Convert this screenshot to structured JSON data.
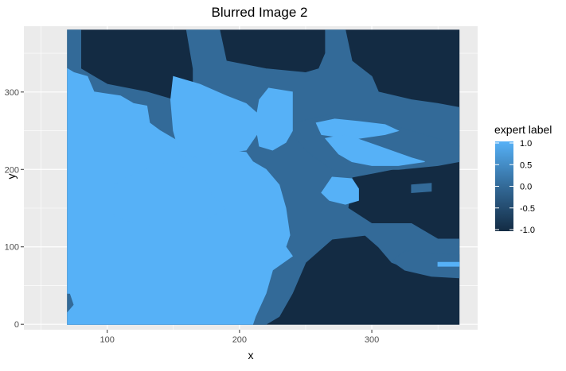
{
  "chart_data": {
    "type": "heatmap",
    "title": "Blurred Image 2",
    "xlabel": "x",
    "ylabel": "y",
    "xlim": [
      37,
      380
    ],
    "ylim": [
      -7,
      385
    ],
    "x_range": [
      70,
      366
    ],
    "y_range": [
      0,
      380
    ],
    "x_ticks": [
      100,
      200,
      300
    ],
    "y_ticks": [
      0,
      100,
      200,
      300
    ],
    "grid": true,
    "legend": {
      "title": "expert label",
      "position": "right",
      "min": -1.0,
      "max": 1.0,
      "ticks": [
        1.0,
        0.5,
        0.0,
        -0.5,
        -1.0
      ],
      "tick_labels": [
        "1.0",
        "0.5",
        "0.0",
        "-0.5",
        "-1.0"
      ]
    },
    "colors": {
      "low": "#132B43",
      "mid": "#336A98",
      "high": "#56B1F7",
      "panel": "#EBEBEB",
      "grid": "#FFFFFF"
    },
    "regions": [
      {
        "label": -1.0,
        "polygons": [
          [
            [
              70,
              380
            ],
            [
              366,
              380
            ],
            [
              366,
              0
            ],
            [
              70,
              0
            ]
          ]
        ]
      },
      {
        "label": 0.0,
        "polygons": [
          [
            [
              70,
              380
            ],
            [
              80,
              380
            ],
            [
              80,
              330
            ],
            [
              100,
              310
            ],
            [
              130,
              300
            ],
            [
              150,
              290
            ],
            [
              165,
              285
            ],
            [
              165,
              330
            ],
            [
              160,
              380
            ],
            [
              185,
              380
            ],
            [
              190,
              340
            ],
            [
              220,
              330
            ],
            [
              250,
              325
            ],
            [
              260,
              330
            ],
            [
              265,
              350
            ],
            [
              265,
              380
            ],
            [
              280,
              380
            ],
            [
              285,
              340
            ],
            [
              300,
              320
            ],
            [
              305,
              300
            ],
            [
              330,
              290
            ],
            [
              350,
              285
            ],
            [
              366,
              280
            ],
            [
              366,
              230
            ],
            [
              350,
              215
            ],
            [
              330,
              205
            ],
            [
              300,
              195
            ],
            [
              285,
              190
            ],
            [
              282,
              150
            ],
            [
              300,
              130
            ],
            [
              330,
              130
            ],
            [
              350,
              110
            ],
            [
              366,
              110
            ],
            [
              366,
              60
            ],
            [
              350,
              70
            ],
            [
              330,
              70
            ],
            [
              315,
              80
            ],
            [
              305,
              100
            ],
            [
              295,
              115
            ],
            [
              270,
              110
            ],
            [
              250,
              80
            ],
            [
              240,
              40
            ],
            [
              230,
              10
            ],
            [
              220,
              0
            ],
            [
              70,
              0
            ]
          ],
          [
            [
              240,
              260
            ],
            [
              265,
              270
            ],
            [
              290,
              265
            ],
            [
              310,
              260
            ],
            [
              330,
              250
            ],
            [
              350,
              240
            ],
            [
              366,
              230
            ],
            [
              366,
              210
            ],
            [
              350,
              205
            ],
            [
              320,
              200
            ],
            [
              290,
              200
            ],
            [
              275,
              195
            ],
            [
              265,
              205
            ],
            [
              250,
              225
            ],
            [
              240,
              245
            ]
          ],
          [
            [
              325,
              95
            ],
            [
              345,
              92
            ],
            [
              366,
              90
            ],
            [
              366,
              60
            ],
            [
              345,
              62
            ],
            [
              325,
              70
            ],
            [
              315,
              82
            ]
          ],
          [
            [
              330,
              180
            ],
            [
              345,
              182
            ],
            [
              345,
              172
            ],
            [
              330,
              170
            ]
          ]
        ]
      },
      {
        "label": 1.0,
        "polygons": [
          [
            [
              70,
              330
            ],
            [
              75,
              325
            ],
            [
              85,
              320
            ],
            [
              90,
              300
            ],
            [
              110,
              295
            ],
            [
              120,
              285
            ],
            [
              130,
              282
            ],
            [
              132,
              260
            ],
            [
              140,
              250
            ],
            [
              150,
              240
            ],
            [
              160,
              230
            ],
            [
              175,
              225
            ],
            [
              190,
              225
            ],
            [
              205,
              222
            ],
            [
              210,
              210
            ],
            [
              220,
              200
            ],
            [
              230,
              180
            ],
            [
              235,
              150
            ],
            [
              238,
              115
            ],
            [
              235,
              100
            ],
            [
              240,
              88
            ],
            [
              225,
              70
            ],
            [
              220,
              40
            ],
            [
              212,
              10
            ],
            [
              210,
              0
            ],
            [
              70,
              0
            ],
            [
              70,
              15
            ],
            [
              75,
              25
            ],
            [
              72,
              40
            ],
            [
              70,
              40
            ]
          ],
          [
            [
              105,
              180
            ],
            [
              120,
              195
            ],
            [
              135,
              205
            ],
            [
              150,
              210
            ],
            [
              160,
              200
            ],
            [
              175,
              185
            ],
            [
              180,
              165
            ],
            [
              190,
              150
            ],
            [
              175,
              135
            ],
            [
              160,
              130
            ],
            [
              140,
              128
            ],
            [
              120,
              130
            ],
            [
              105,
              140
            ],
            [
              103,
              160
            ]
          ],
          [
            [
              150,
              320
            ],
            [
              170,
              310
            ],
            [
              190,
              295
            ],
            [
              205,
              285
            ],
            [
              215,
              270
            ],
            [
              213,
              245
            ],
            [
              205,
              225
            ],
            [
              180,
              220
            ],
            [
              165,
              215
            ],
            [
              155,
              220
            ],
            [
              150,
              250
            ],
            [
              148,
              290
            ]
          ],
          [
            [
              222,
              305
            ],
            [
              240,
              300
            ],
            [
              240,
              250
            ],
            [
              235,
              235
            ],
            [
              225,
              225
            ],
            [
              215,
              230
            ],
            [
              212,
              260
            ],
            [
              215,
              290
            ]
          ],
          [
            [
              258,
              260
            ],
            [
              272,
              265
            ],
            [
              290,
              262
            ],
            [
              310,
              258
            ],
            [
              320,
              250
            ],
            [
              310,
              245
            ],
            [
              290,
              240
            ],
            [
              275,
              242
            ],
            [
              262,
              245
            ]
          ],
          [
            [
              265,
              240
            ],
            [
              280,
              245
            ],
            [
              305,
              230
            ],
            [
              330,
              215
            ],
            [
              340,
              210
            ],
            [
              320,
              205
            ],
            [
              300,
              205
            ],
            [
              285,
              210
            ],
            [
              275,
              220
            ]
          ],
          [
            [
              270,
              190
            ],
            [
              285,
              188
            ],
            [
              290,
              175
            ],
            [
              290,
              160
            ],
            [
              280,
              155
            ],
            [
              268,
              160
            ],
            [
              262,
              170
            ]
          ],
          [
            [
              350,
              75
            ],
            [
              366,
              75
            ],
            [
              366,
              80
            ],
            [
              350,
              80
            ]
          ]
        ]
      }
    ]
  }
}
